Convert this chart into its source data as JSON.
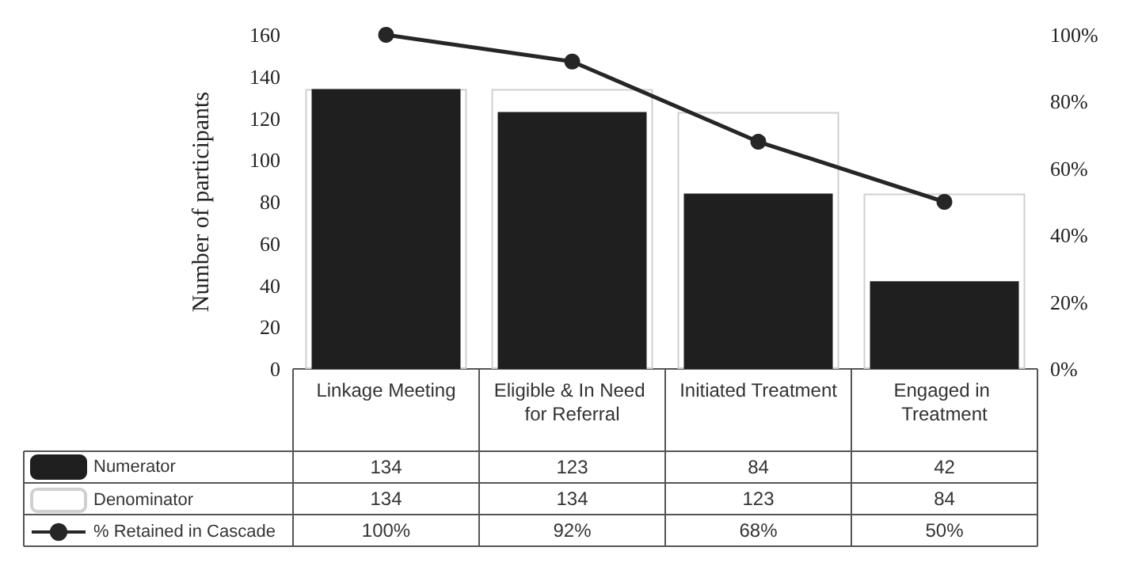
{
  "chart_data": {
    "type": "bar",
    "ylabel": "Number of participants",
    "categories": [
      "Linkage Meeting",
      "Eligible & In Need for Referral",
      "Initiated Treatment",
      "Engaged in Treatment"
    ],
    "series": [
      {
        "name": "Numerator",
        "color": "#1f1f1f",
        "values": [
          134,
          123,
          84,
          42
        ],
        "value_labels": [
          "134",
          "123",
          "84",
          "42"
        ]
      },
      {
        "name": "Denominator",
        "color": "#ffffff",
        "values": [
          134,
          134,
          123,
          84
        ],
        "value_labels": [
          "134",
          "134",
          "123",
          "84"
        ]
      },
      {
        "name": "% Retained in Cascade",
        "type": "line",
        "axis": "y2",
        "color": "#262626",
        "marker": "circle",
        "values": [
          100,
          92,
          68,
          50
        ],
        "value_labels": [
          "100%",
          "92%",
          "68%",
          "50%"
        ]
      }
    ],
    "ylim": [
      0,
      160
    ],
    "yticks": [
      0,
      20,
      40,
      60,
      80,
      100,
      120,
      140,
      160
    ],
    "y2lim": [
      0,
      100
    ],
    "y2ticks": [
      {
        "value": 0,
        "label": "0%"
      },
      {
        "value": 20,
        "label": "20%"
      },
      {
        "value": 40,
        "label": "40%"
      },
      {
        "value": 60,
        "label": "60%"
      },
      {
        "value": 80,
        "label": "80%"
      },
      {
        "value": 100,
        "label": "100%"
      }
    ],
    "grid": false,
    "legend": "bottom left"
  }
}
